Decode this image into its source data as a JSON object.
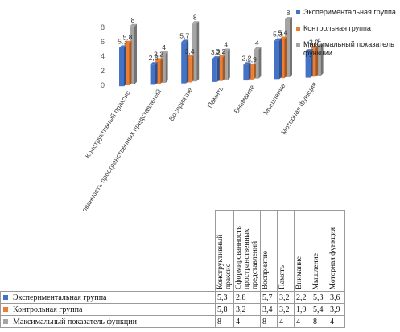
{
  "chart_data": {
    "type": "bar",
    "categories": [
      "Конструктивный праксис",
      "Сформированность пространственных представлений",
      "Восприятие",
      "Память",
      "Внимание",
      "Мышление",
      "Моторная функция"
    ],
    "series": [
      {
        "name": "Экспериментальная группа",
        "color": "#4472c4",
        "values": [
          5.3,
          2.8,
          5.7,
          3.2,
          2.2,
          5.3,
          3.6
        ],
        "labels": [
          "5,3",
          "2,8",
          "5,7",
          "3,2",
          "2,2",
          "5,3",
          "3,6"
        ]
      },
      {
        "name": "Контрольная группа",
        "color": "#ed7d31",
        "values": [
          5.8,
          3.2,
          3.4,
          3.2,
          1.9,
          5.4,
          3.9
        ],
        "labels": [
          "5,8",
          "3,2",
          "3,4",
          "3,2",
          "1,9",
          "5,4",
          "3,9"
        ]
      },
      {
        "name": "Максимальный показатель функции",
        "color": "#a5a5a5",
        "values": [
          8,
          4,
          8,
          4,
          4,
          8,
          4
        ],
        "labels": [
          "8",
          "4",
          "8",
          "4",
          "4",
          "8",
          "4"
        ]
      }
    ],
    "yticks": [
      "0",
      "2",
      "4",
      "6",
      "8"
    ],
    "ylim": [
      0,
      8
    ],
    "grid": false,
    "legend": "right",
    "table": {
      "headers": [
        "Конструктивный праксис",
        "Сформированность пространственных представлений",
        "Восприятие",
        "Память",
        "Внимание",
        "Мышление",
        "Моторная функция"
      ]
    }
  }
}
